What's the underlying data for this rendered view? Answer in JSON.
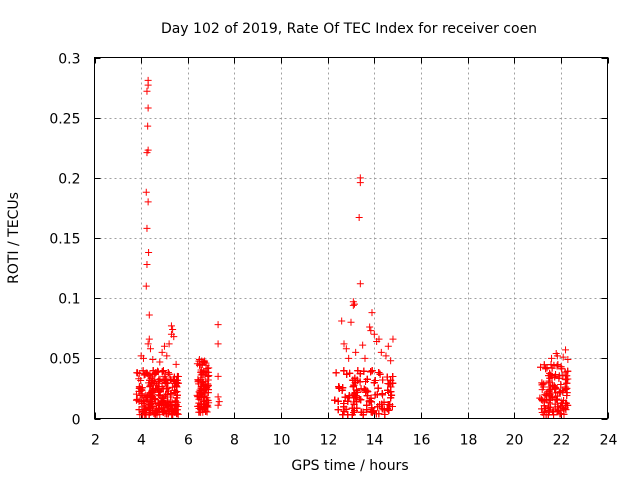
{
  "chart_data": {
    "type": "scatter",
    "title": "Day 102 of 2019, Rate Of TEC Index for receiver coen",
    "xlabel": "GPS time / hours",
    "ylabel": "ROTI / TECUs",
    "xlim": [
      2,
      24
    ],
    "ylim": [
      0,
      0.3
    ],
    "xticks": [
      2,
      4,
      6,
      8,
      10,
      12,
      14,
      16,
      18,
      20,
      22,
      24
    ],
    "yticks": [
      0,
      0.05,
      0.1,
      0.15,
      0.2,
      0.25,
      0.3
    ],
    "ytick_labels": [
      "0",
      "0.05",
      "0.1",
      "0.15",
      "0.2",
      "0.25",
      "0.3"
    ],
    "grid": true,
    "marker": "+",
    "color": "#ff0000",
    "series": [
      {
        "name": "ROTI",
        "clusters": [
          {
            "x_range": [
              3.8,
              5.6
            ],
            "y_range": [
              0.003,
              0.04
            ],
            "count": 520
          },
          {
            "x_range": [
              6.4,
              6.9
            ],
            "y_range": [
              0.005,
              0.048
            ],
            "count": 140
          },
          {
            "x_range": [
              12.3,
              14.8
            ],
            "y_range": [
              0.003,
              0.04
            ],
            "count": 700
          },
          {
            "x_range": [
              21.1,
              22.3
            ],
            "y_range": [
              0.003,
              0.045
            ],
            "count": 260
          }
        ],
        "points": [
          {
            "x": 4.3,
            "y": 0.281
          },
          {
            "x": 4.3,
            "y": 0.277
          },
          {
            "x": 4.25,
            "y": 0.272
          },
          {
            "x": 4.3,
            "y": 0.258
          },
          {
            "x": 4.28,
            "y": 0.243
          },
          {
            "x": 4.3,
            "y": 0.223
          },
          {
            "x": 4.25,
            "y": 0.221
          },
          {
            "x": 4.22,
            "y": 0.188
          },
          {
            "x": 4.3,
            "y": 0.18
          },
          {
            "x": 4.25,
            "y": 0.158
          },
          {
            "x": 4.32,
            "y": 0.138
          },
          {
            "x": 4.25,
            "y": 0.128
          },
          {
            "x": 4.22,
            "y": 0.11
          },
          {
            "x": 4.35,
            "y": 0.086
          },
          {
            "x": 4.35,
            "y": 0.066
          },
          {
            "x": 4.3,
            "y": 0.062
          },
          {
            "x": 4.4,
            "y": 0.058
          },
          {
            "x": 4.0,
            "y": 0.052
          },
          {
            "x": 4.1,
            "y": 0.05
          },
          {
            "x": 4.5,
            "y": 0.049
          },
          {
            "x": 5.3,
            "y": 0.077
          },
          {
            "x": 5.35,
            "y": 0.074
          },
          {
            "x": 5.3,
            "y": 0.07
          },
          {
            "x": 5.4,
            "y": 0.068
          },
          {
            "x": 5.0,
            "y": 0.06
          },
          {
            "x": 4.9,
            "y": 0.055
          },
          {
            "x": 5.1,
            "y": 0.052
          },
          {
            "x": 5.2,
            "y": 0.062
          },
          {
            "x": 4.8,
            "y": 0.047
          },
          {
            "x": 5.5,
            "y": 0.045
          },
          {
            "x": 6.5,
            "y": 0.049
          },
          {
            "x": 6.7,
            "y": 0.047
          },
          {
            "x": 7.3,
            "y": 0.078
          },
          {
            "x": 7.3,
            "y": 0.062
          },
          {
            "x": 7.3,
            "y": 0.035
          },
          {
            "x": 7.3,
            "y": 0.018
          },
          {
            "x": 7.35,
            "y": 0.014
          },
          {
            "x": 7.3,
            "y": 0.011
          },
          {
            "x": 13.4,
            "y": 0.2
          },
          {
            "x": 13.4,
            "y": 0.196
          },
          {
            "x": 13.35,
            "y": 0.167
          },
          {
            "x": 13.4,
            "y": 0.112
          },
          {
            "x": 13.1,
            "y": 0.097
          },
          {
            "x": 13.15,
            "y": 0.095
          },
          {
            "x": 13.1,
            "y": 0.094
          },
          {
            "x": 13.9,
            "y": 0.088
          },
          {
            "x": 12.6,
            "y": 0.081
          },
          {
            "x": 13.0,
            "y": 0.08
          },
          {
            "x": 13.8,
            "y": 0.076
          },
          {
            "x": 13.85,
            "y": 0.073
          },
          {
            "x": 14.0,
            "y": 0.07
          },
          {
            "x": 14.2,
            "y": 0.066
          },
          {
            "x": 14.1,
            "y": 0.064
          },
          {
            "x": 14.8,
            "y": 0.066
          },
          {
            "x": 13.5,
            "y": 0.061
          },
          {
            "x": 12.7,
            "y": 0.062
          },
          {
            "x": 12.8,
            "y": 0.058
          },
          {
            "x": 14.6,
            "y": 0.06
          },
          {
            "x": 14.3,
            "y": 0.055
          },
          {
            "x": 13.2,
            "y": 0.055
          },
          {
            "x": 14.5,
            "y": 0.052
          },
          {
            "x": 13.6,
            "y": 0.05
          },
          {
            "x": 12.9,
            "y": 0.05
          },
          {
            "x": 14.7,
            "y": 0.048
          },
          {
            "x": 21.8,
            "y": 0.054
          },
          {
            "x": 21.85,
            "y": 0.052
          },
          {
            "x": 22.2,
            "y": 0.057
          },
          {
            "x": 22.1,
            "y": 0.051
          },
          {
            "x": 21.6,
            "y": 0.05
          },
          {
            "x": 22.3,
            "y": 0.049
          },
          {
            "x": 21.2,
            "y": 0.024
          },
          {
            "x": 21.2,
            "y": 0.015
          },
          {
            "x": 21.2,
            "y": 0.005
          }
        ]
      }
    ]
  }
}
